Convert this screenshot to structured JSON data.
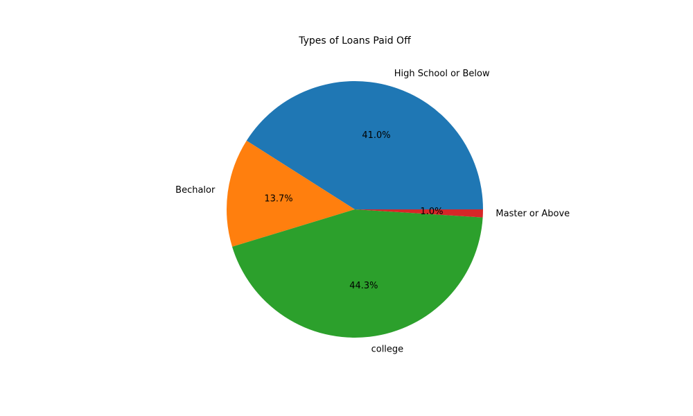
{
  "chart_data": {
    "type": "pie",
    "title": "Types of Loans Paid Off",
    "slices": [
      {
        "label": "High School or Below",
        "value": 41.0,
        "pct_label": "41.0%",
        "color": "#1f77b4"
      },
      {
        "label": "Bechalor",
        "value": 13.7,
        "pct_label": "13.7%",
        "color": "#ff7f0e"
      },
      {
        "label": "college",
        "value": 44.3,
        "pct_label": "44.3%",
        "color": "#2ca02c"
      },
      {
        "label": "Master or Above",
        "value": 1.0,
        "pct_label": "1.0%",
        "color": "#d62728"
      }
    ],
    "start_angle_deg": 0,
    "direction": "counterclockwise",
    "legend": "none"
  }
}
